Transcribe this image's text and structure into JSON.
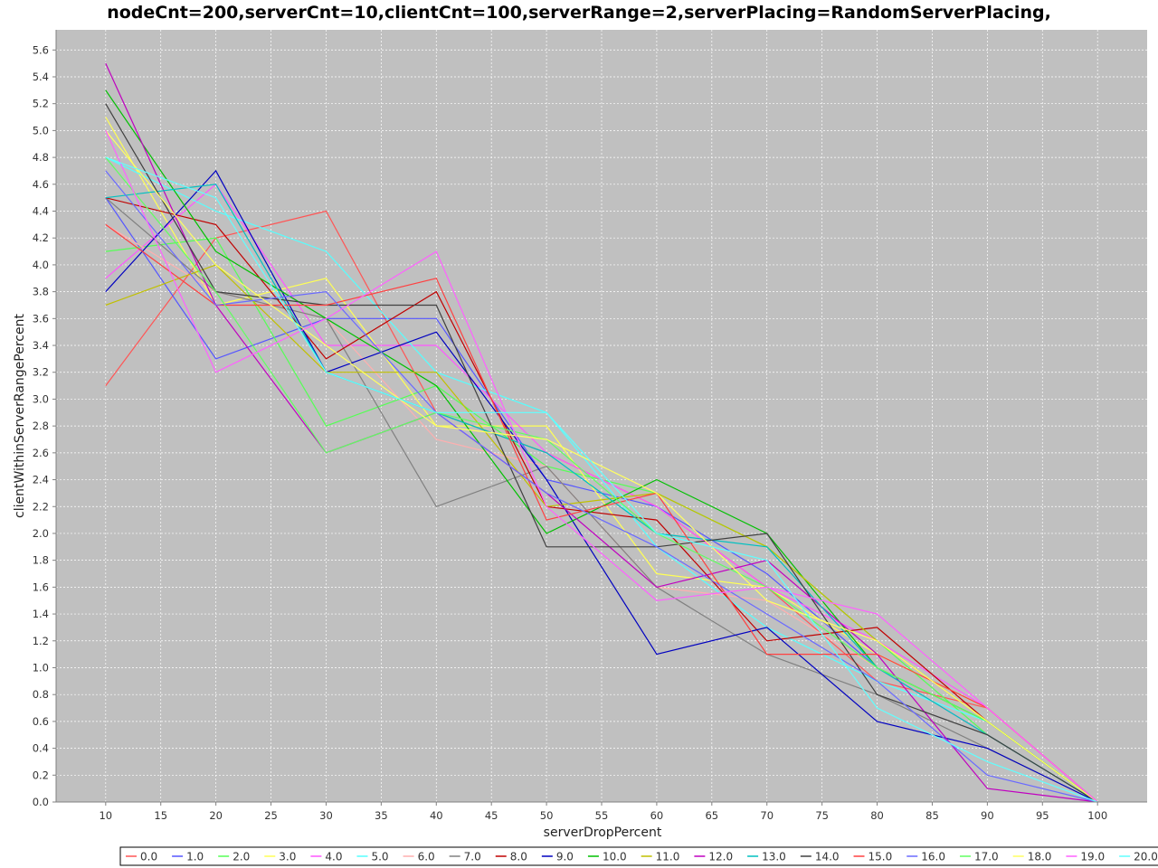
{
  "chart_data": {
    "type": "line",
    "title": "nodeCnt=200,serverCnt=10,clientCnt=100,serverRange=2,serverPlacing=RandomServerPlacing,",
    "xlabel": "serverDropPercent",
    "ylabel": "clientWithinServerRangePercent",
    "xlim": [
      5.5,
      104.5
    ],
    "ylim": [
      0,
      5.75
    ],
    "xticks": [
      10,
      15,
      20,
      25,
      30,
      35,
      40,
      45,
      50,
      55,
      60,
      65,
      70,
      75,
      80,
      85,
      90,
      95,
      100
    ],
    "yticks": [
      0.0,
      0.2,
      0.4,
      0.6,
      0.8,
      1.0,
      1.2,
      1.4,
      1.6,
      1.8,
      2.0,
      2.2,
      2.4,
      2.6,
      2.8,
      3.0,
      3.2,
      3.4,
      3.6,
      3.8,
      4.0,
      4.2,
      4.4,
      4.6,
      4.8,
      5.0,
      5.2,
      5.4,
      5.6
    ],
    "grid": true,
    "legend_position": "bottom",
    "background": "#c0c0c0",
    "x": [
      10,
      20,
      30,
      40,
      50,
      60,
      70,
      80,
      90,
      100
    ],
    "series": [
      {
        "name": "0.0",
        "color": "#ff5555",
        "values": [
          3.1,
          4.2,
          4.4,
          2.9,
          2.6,
          2.2,
          1.6,
          0.9,
          0.7,
          0.0
        ]
      },
      {
        "name": "1.0",
        "color": "#5555ff",
        "values": [
          4.5,
          3.3,
          3.6,
          3.6,
          2.4,
          2.2,
          1.7,
          1.0,
          0.5,
          0.0
        ]
      },
      {
        "name": "2.0",
        "color": "#55ff55",
        "values": [
          4.1,
          4.2,
          2.8,
          3.1,
          2.5,
          2.3,
          1.9,
          1.2,
          0.5,
          0.0
        ]
      },
      {
        "name": "3.0",
        "color": "#ffff55",
        "values": [
          5.1,
          3.7,
          3.9,
          2.8,
          2.8,
          1.7,
          1.6,
          1.1,
          0.7,
          0.0
        ]
      },
      {
        "name": "4.0",
        "color": "#ff55ff",
        "values": [
          3.9,
          4.6,
          3.4,
          3.4,
          2.6,
          2.2,
          1.6,
          1.2,
          0.7,
          0.0
        ]
      },
      {
        "name": "5.0",
        "color": "#55ffff",
        "values": [
          4.8,
          4.4,
          4.1,
          3.2,
          2.9,
          1.9,
          1.3,
          0.9,
          0.6,
          0.0
        ]
      },
      {
        "name": "6.0",
        "color": "#ffafaf",
        "values": [
          4.3,
          3.8,
          3.6,
          2.7,
          2.5,
          1.6,
          1.5,
          1.0,
          0.5,
          0.0
        ]
      },
      {
        "name": "7.0",
        "color": "#808080",
        "values": [
          4.5,
          3.8,
          3.6,
          2.2,
          2.5,
          1.6,
          1.1,
          0.8,
          0.4,
          0.0
        ]
      },
      {
        "name": "8.0",
        "color": "#c00000",
        "values": [
          4.5,
          4.3,
          3.3,
          3.8,
          2.2,
          2.1,
          1.2,
          1.3,
          0.6,
          0.0
        ]
      },
      {
        "name": "9.0",
        "color": "#0000c0",
        "values": [
          3.8,
          4.7,
          3.2,
          3.5,
          2.4,
          1.1,
          1.3,
          0.6,
          0.4,
          0.0
        ]
      },
      {
        "name": "10.0",
        "color": "#00c000",
        "values": [
          5.3,
          4.1,
          3.6,
          3.1,
          2.0,
          2.4,
          2.0,
          1.0,
          0.6,
          0.0
        ]
      },
      {
        "name": "11.0",
        "color": "#c0c000",
        "values": [
          3.7,
          4.0,
          3.2,
          3.2,
          2.2,
          2.3,
          1.9,
          1.2,
          0.6,
          0.0
        ]
      },
      {
        "name": "12.0",
        "color": "#c000c0",
        "values": [
          5.5,
          3.7,
          2.6,
          2.9,
          2.3,
          1.6,
          1.8,
          1.1,
          0.1,
          0.0
        ]
      },
      {
        "name": "13.0",
        "color": "#00c0c0",
        "values": [
          4.5,
          4.6,
          3.2,
          2.9,
          2.6,
          2.0,
          1.9,
          1.0,
          0.5,
          0.0
        ]
      },
      {
        "name": "14.0",
        "color": "#404040",
        "values": [
          5.2,
          3.8,
          3.7,
          3.7,
          1.9,
          1.9,
          2.0,
          0.8,
          0.5,
          0.0
        ]
      },
      {
        "name": "15.0",
        "color": "#ff4040",
        "values": [
          4.3,
          3.7,
          3.7,
          3.9,
          2.1,
          2.3,
          1.1,
          1.1,
          0.7,
          0.0
        ]
      },
      {
        "name": "16.0",
        "color": "#6a6aff",
        "values": [
          4.7,
          3.7,
          3.8,
          2.9,
          2.3,
          1.9,
          1.4,
          0.9,
          0.2,
          0.0
        ]
      },
      {
        "name": "17.0",
        "color": "#60ff60",
        "values": [
          4.8,
          3.8,
          2.6,
          2.9,
          2.7,
          2.0,
          1.6,
          1.0,
          0.6,
          0.0
        ]
      },
      {
        "name": "18.0",
        "color": "#ffff60",
        "values": [
          5.0,
          4.0,
          3.4,
          2.8,
          2.7,
          2.3,
          1.5,
          1.2,
          0.6,
          0.0
        ]
      },
      {
        "name": "19.0",
        "color": "#ff60ff",
        "values": [
          5.0,
          3.2,
          3.6,
          4.1,
          2.2,
          1.5,
          1.6,
          1.4,
          0.7,
          0.0
        ]
      },
      {
        "name": "20.0",
        "color": "#60ffff",
        "values": [
          4.8,
          4.5,
          3.2,
          2.9,
          2.9,
          2.0,
          1.8,
          0.7,
          0.3,
          0.0
        ]
      }
    ]
  }
}
